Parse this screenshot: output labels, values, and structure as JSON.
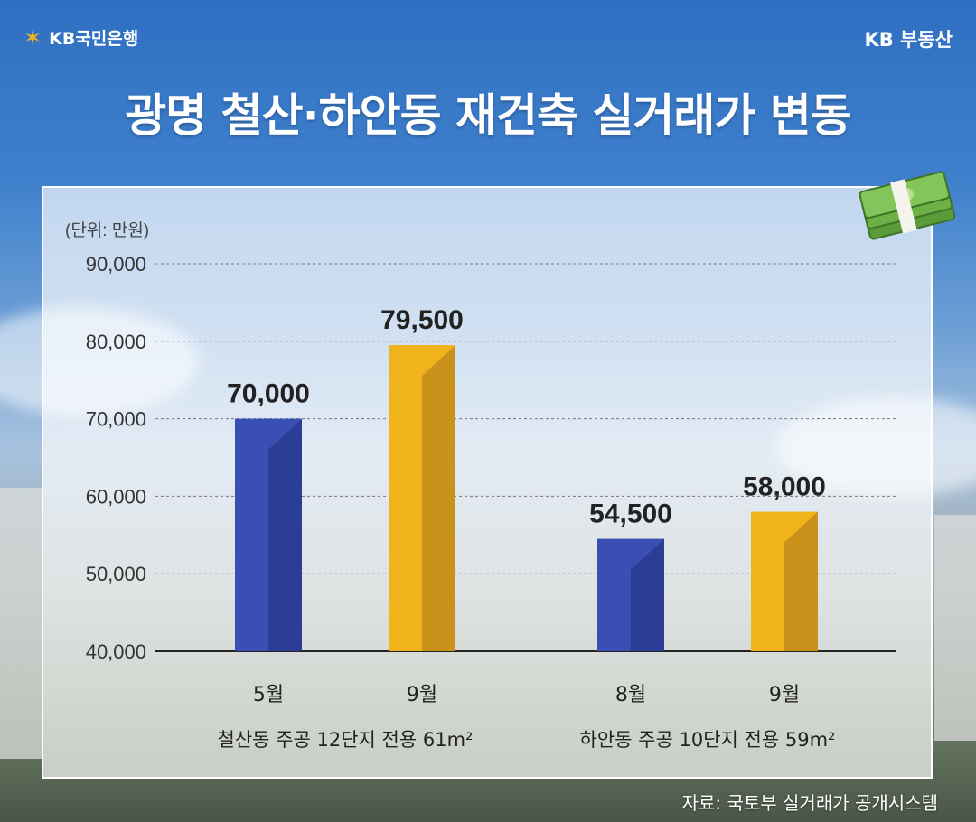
{
  "header": {
    "brand_left": "KB국민은행",
    "brand_right": "KB 부동산",
    "title": "광명 철산·하안동 재건축 실거래가 변동"
  },
  "footer": {
    "source": "자료: 국토부 실거래가 공개시스템"
  },
  "colors": {
    "blue": "#3a4fb3",
    "blue_dark": "#2b3d95",
    "gold": "#f0b31c",
    "gold_dark": "#c9921a"
  },
  "icons": {
    "logo": "kb-star-icon",
    "money": "money-stack-icon"
  },
  "chart_data": {
    "type": "bar",
    "unit_label": "(단위: 만원)",
    "ylim": [
      40000,
      90000
    ],
    "yticks": [
      90000,
      80000,
      70000,
      60000,
      50000,
      40000
    ],
    "ytick_labels": [
      "90,000",
      "80,000",
      "70,000",
      "60,000",
      "50,000",
      "40,000"
    ],
    "grid": true,
    "groups": [
      {
        "label": "철산동 주공 12단지 전용 61m²",
        "bars": [
          {
            "category": "5월",
            "value": 70000,
            "value_label": "70,000",
            "color": "blue"
          },
          {
            "category": "9월",
            "value": 79500,
            "value_label": "79,500",
            "color": "gold"
          }
        ]
      },
      {
        "label": "하안동 주공 10단지 전용 59m²",
        "bars": [
          {
            "category": "8월",
            "value": 54500,
            "value_label": "54,500",
            "color": "blue"
          },
          {
            "category": "9월",
            "value": 58000,
            "value_label": "58,000",
            "color": "gold"
          }
        ]
      }
    ]
  }
}
